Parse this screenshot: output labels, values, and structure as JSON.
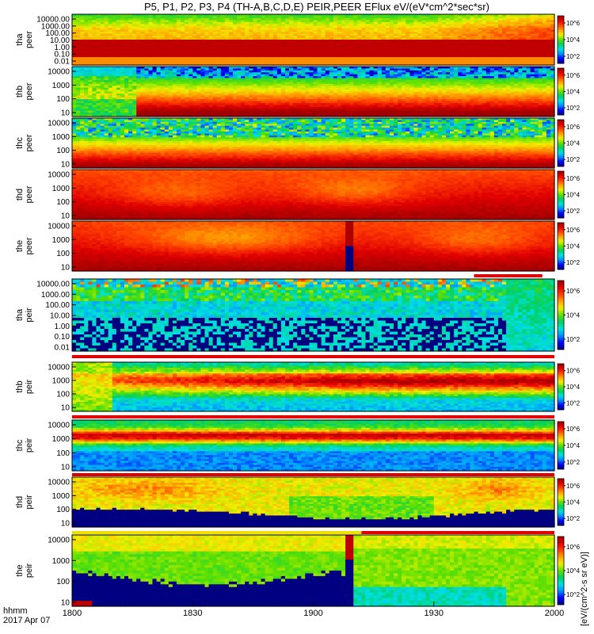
{
  "chart_data": {
    "type": "heatmap",
    "title": "P5, P1, P2, P3, P4 (TH-A,B,C,D,E) PEIR,PEER EFlux eV/(eV*cm^2*sec*sr)",
    "colorbar_label": "[eV/(cm^2-s sr eV)]",
    "colorbar_ticks": [
      "10^2",
      "10^4",
      "10^6"
    ],
    "colorbar_ticks_compact": [
      "10^2",
      "10^4",
      "10^6"
    ],
    "colorscale": [
      "#000080",
      "#0000ff",
      "#0090ff",
      "#00e0e0",
      "#00d060",
      "#60e000",
      "#f0f000",
      "#ffa000",
      "#ff4000",
      "#e00000",
      "#a00000"
    ],
    "x_axis": {
      "ticks": [
        "1800",
        "1830",
        "1900",
        "1930",
        "2000"
      ],
      "unit_label": "hhmm",
      "date_label": "2017 Apr 07",
      "range": [
        "18:00",
        "20:00"
      ]
    },
    "panels": [
      {
        "probe": "tha",
        "species": "peer",
        "ylabel": [
          "tha",
          "peer"
        ],
        "ylog": true,
        "yticks": [
          "10000.00",
          "1000.00",
          "100.00",
          "10.00",
          "1.00",
          "0.10",
          "0.01"
        ],
        "profile": "tha_peer"
      },
      {
        "probe": "thb",
        "species": "peer",
        "ylabel": [
          "thb",
          "peer"
        ],
        "ylog": true,
        "yticks": [
          "10000",
          "1000",
          "100",
          "10"
        ],
        "profile": "thb_peer"
      },
      {
        "probe": "thc",
        "species": "peer",
        "ylabel": [
          "thc",
          "peer"
        ],
        "ylog": true,
        "yticks": [
          "10000",
          "1000",
          "100",
          "10"
        ],
        "profile": "thc_peer"
      },
      {
        "probe": "thd",
        "species": "peer",
        "ylabel": [
          "thd",
          "peer"
        ],
        "ylog": true,
        "yticks": [
          "10000",
          "1000",
          "100",
          "10"
        ],
        "profile": "thd_peer"
      },
      {
        "probe": "the",
        "species": "peer",
        "ylabel": [
          "the",
          "peer"
        ],
        "ylog": true,
        "yticks": [
          "10000",
          "1000",
          "100",
          "10"
        ],
        "profile": "the_peer"
      },
      {
        "probe": "tha",
        "species": "peir",
        "ylabel": [
          "tha",
          "peir"
        ],
        "ylog": true,
        "yticks": [
          "10000.00",
          "1000.00",
          "100.00",
          "10.00",
          "1.00",
          "0.10",
          "0.01"
        ],
        "profile": "tha_peir"
      },
      {
        "probe": "thb",
        "species": "peir",
        "ylabel": [
          "thb",
          "peir"
        ],
        "ylog": true,
        "yticks": [
          "10000",
          "1000",
          "100",
          "10"
        ],
        "profile": "thb_peir"
      },
      {
        "probe": "thc",
        "species": "peir",
        "ylabel": [
          "thc",
          "peir"
        ],
        "ylog": true,
        "yticks": [
          "10000",
          "1000",
          "100",
          "10"
        ],
        "profile": "thc_peir"
      },
      {
        "probe": "thd",
        "species": "peir",
        "ylabel": [
          "thd",
          "peir"
        ],
        "ylog": true,
        "yticks": [
          "10000",
          "1000",
          "100",
          "10"
        ],
        "profile": "thd_peir"
      },
      {
        "probe": "the",
        "species": "peir",
        "ylabel": [
          "the",
          "peir"
        ],
        "ylog": true,
        "yticks": [
          "10000",
          "1000",
          "100",
          "10"
        ],
        "profile": "the_peir"
      }
    ],
    "mode_bars": [
      {
        "after_panel": 4,
        "segments": [
          {
            "from": "19:40",
            "to": "19:57",
            "color": "red"
          }
        ]
      },
      {
        "after_panel": 5,
        "segments": [
          {
            "from": "18:00",
            "to": "20:00",
            "color": "red"
          }
        ]
      },
      {
        "after_panel": 6,
        "segments": [
          {
            "from": "18:00",
            "to": "20:00",
            "color": "red"
          }
        ]
      },
      {
        "after_panel": 7,
        "segments": [
          {
            "from": "18:00",
            "to": "20:00",
            "color": "red"
          }
        ]
      },
      {
        "after_panel": 8,
        "segments": [
          {
            "from": "18:00",
            "to": "19:12",
            "color": "yellow"
          },
          {
            "from": "19:12",
            "to": "20:00",
            "color": "red"
          }
        ]
      }
    ]
  }
}
